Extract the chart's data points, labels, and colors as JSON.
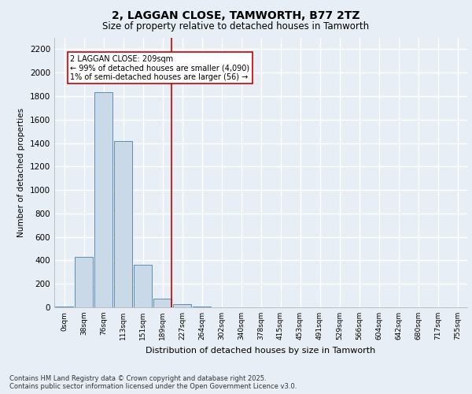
{
  "title_line1": "2, LAGGAN CLOSE, TAMWORTH, B77 2TZ",
  "title_line2": "Size of property relative to detached houses in Tamworth",
  "xlabel": "Distribution of detached houses by size in Tamworth",
  "ylabel": "Number of detached properties",
  "bar_labels": [
    "0sqm",
    "38sqm",
    "76sqm",
    "113sqm",
    "151sqm",
    "189sqm",
    "227sqm",
    "264sqm",
    "302sqm",
    "340sqm",
    "378sqm",
    "415sqm",
    "453sqm",
    "491sqm",
    "529sqm",
    "566sqm",
    "604sqm",
    "642sqm",
    "680sqm",
    "717sqm",
    "755sqm"
  ],
  "bar_values": [
    5,
    430,
    1830,
    1420,
    360,
    75,
    25,
    5,
    0,
    0,
    0,
    0,
    0,
    0,
    0,
    0,
    0,
    0,
    0,
    0,
    0
  ],
  "bar_color": "#c9d9e8",
  "bar_edge_color": "#5b8db8",
  "vline_x": 5.47,
  "vline_color": "#cc0000",
  "annotation_text": "2 LAGGAN CLOSE: 209sqm\n← 99% of detached houses are smaller (4,090)\n1% of semi-detached houses are larger (56) →",
  "annotation_box_color": "#cc0000",
  "ylim": [
    0,
    2300
  ],
  "yticks": [
    0,
    200,
    400,
    600,
    800,
    1000,
    1200,
    1400,
    1600,
    1800,
    2000,
    2200
  ],
  "background_color": "#e8eef5",
  "grid_color": "#ffffff",
  "footer_line1": "Contains HM Land Registry data © Crown copyright and database right 2025.",
  "footer_line2": "Contains public sector information licensed under the Open Government Licence v3.0."
}
